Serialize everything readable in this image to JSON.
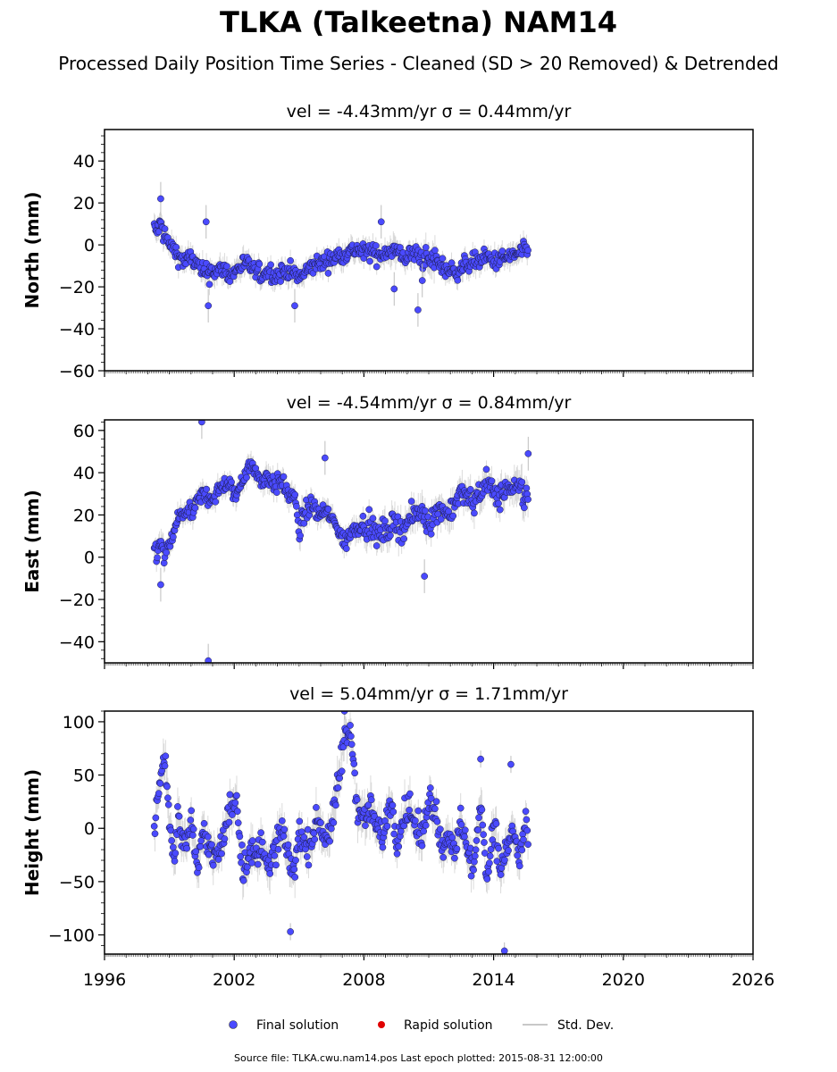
{
  "figure": {
    "title": "TLKA (Talkeetna) NAM14",
    "subtitle": "Processed Daily Position Time Series - Cleaned (SD > 20 Removed) & Detrended",
    "source": "Source file: TLKA.cwu.nam14.pos  Last epoch plotted: 2015-08-31 12:00:00"
  },
  "legend": {
    "items": [
      {
        "label": "Final solution",
        "kind": "dot",
        "color": "#4a4aff"
      },
      {
        "label": "Rapid solution",
        "kind": "dot",
        "color": "#e00000"
      },
      {
        "label": "Std. Dev.",
        "kind": "line",
        "color": "#c8c8c8"
      }
    ]
  },
  "chart_data": [
    {
      "type": "scatter",
      "title": "vel = -4.43mm/yr   σ = 0.44mm/yr",
      "ylabel": "North (mm)",
      "xlim": [
        1996,
        2026
      ],
      "ylim": [
        -60,
        55
      ],
      "yticks": [
        -60,
        -40,
        -20,
        0,
        20,
        40
      ],
      "yticklabels": [
        "−60",
        "−40",
        "−20",
        "0",
        "20",
        "40"
      ],
      "series_name": "Final solution",
      "x": [
        1998.3,
        1998.4,
        1998.6,
        1998.8,
        1999.0,
        1999.2,
        1999.4,
        1999.7,
        2000.0,
        2000.3,
        2000.6,
        2000.9,
        2001.2,
        2001.5,
        2001.8,
        2002.1,
        2002.4,
        2002.7,
        2003.0,
        2003.3,
        2003.6,
        2003.9,
        2004.2,
        2004.5,
        2004.8,
        2005.0,
        2005.3,
        2005.6,
        2005.9,
        2006.2,
        2006.5,
        2006.8,
        2007.1,
        2007.4,
        2007.7,
        2008.0,
        2008.3,
        2008.6,
        2008.9,
        2009.2,
        2009.5,
        2009.8,
        2010.1,
        2010.4,
        2010.7,
        2011.0,
        2011.3,
        2011.6,
        2011.9,
        2012.2,
        2012.5,
        2012.8,
        2013.1,
        2013.4,
        2013.7,
        2014.0,
        2014.3,
        2014.6,
        2014.9,
        2015.2,
        2015.5,
        2015.6
      ],
      "y": [
        8,
        6,
        10,
        4,
        0,
        -2,
        -5,
        -8,
        -6,
        -10,
        -14,
        -12,
        -13,
        -11,
        -15,
        -12,
        -9,
        -10,
        -13,
        -14,
        -12,
        -15,
        -13,
        -12,
        -14,
        -16,
        -13,
        -10,
        -9,
        -8,
        -7,
        -5,
        -4,
        -3,
        -2,
        -4,
        -3,
        -5,
        -4,
        -2,
        -3,
        -6,
        -5,
        -4,
        -6,
        -8,
        -7,
        -10,
        -12,
        -13,
        -11,
        -9,
        -8,
        -7,
        -6,
        -8,
        -7,
        -6,
        -5,
        -4,
        -3,
        -2
      ],
      "error": [
        3,
        3,
        4,
        3,
        3,
        3,
        3,
        3,
        3,
        3,
        4,
        3,
        3,
        3,
        3,
        3,
        3,
        3,
        3,
        3,
        3,
        3,
        3,
        3,
        3,
        3,
        3,
        3,
        3,
        3,
        3,
        3,
        3,
        3,
        3,
        3,
        3,
        3,
        3,
        4,
        3,
        3,
        3,
        3,
        4,
        4,
        3,
        3,
        3,
        3,
        3,
        3,
        3,
        3,
        3,
        3,
        3,
        3,
        3,
        3,
        3,
        3
      ],
      "outliers_x": [
        1998.6,
        2000.7,
        2000.8,
        2004.8,
        2008.8,
        2009.4,
        2010.5,
        2010.7
      ],
      "outliers_y": [
        22,
        11,
        -29,
        -29,
        11,
        -21,
        -31,
        -17
      ]
    },
    {
      "type": "scatter",
      "title": "vel = -4.54mm/yr   σ = 0.84mm/yr",
      "ylabel": "East (mm)",
      "xlim": [
        1996,
        2026
      ],
      "ylim": [
        -50,
        65
      ],
      "yticks": [
        -40,
        -20,
        0,
        20,
        40,
        60
      ],
      "yticklabels": [
        "−40",
        "−20",
        "0",
        "20",
        "40",
        "60"
      ],
      "series_name": "Final solution",
      "x": [
        1998.3,
        1998.4,
        1998.6,
        1998.8,
        1999.0,
        1999.2,
        1999.4,
        1999.7,
        2000.0,
        2000.3,
        2000.6,
        2000.9,
        2001.2,
        2001.5,
        2001.8,
        2002.1,
        2002.4,
        2002.7,
        2003.0,
        2003.3,
        2003.6,
        2003.9,
        2004.2,
        2004.5,
        2004.8,
        2005.0,
        2005.3,
        2005.6,
        2005.9,
        2006.2,
        2006.5,
        2006.8,
        2007.1,
        2007.4,
        2007.7,
        2008.0,
        2008.3,
        2008.6,
        2008.9,
        2009.2,
        2009.5,
        2009.8,
        2010.1,
        2010.4,
        2010.7,
        2011.0,
        2011.3,
        2011.6,
        2011.9,
        2012.2,
        2012.5,
        2012.8,
        2013.1,
        2013.4,
        2013.7,
        2014.0,
        2014.3,
        2014.6,
        2014.9,
        2015.2,
        2015.5,
        2015.6
      ],
      "y": [
        4,
        2,
        6,
        0,
        5,
        12,
        18,
        22,
        20,
        26,
        30,
        28,
        30,
        35,
        33,
        29,
        38,
        44,
        40,
        36,
        38,
        34,
        36,
        30,
        28,
        12,
        22,
        25,
        20,
        22,
        18,
        14,
        6,
        12,
        15,
        16,
        14,
        10,
        12,
        14,
        16,
        13,
        18,
        20,
        22,
        16,
        20,
        24,
        20,
        26,
        30,
        28,
        26,
        32,
        36,
        30,
        28,
        34,
        30,
        32,
        28,
        30
      ],
      "error": [
        3,
        3,
        4,
        3,
        3,
        3,
        3,
        3,
        3,
        3,
        3,
        3,
        3,
        3,
        3,
        3,
        3,
        3,
        3,
        3,
        3,
        3,
        3,
        3,
        3,
        4,
        3,
        3,
        3,
        3,
        3,
        3,
        3,
        3,
        3,
        4,
        4,
        4,
        4,
        4,
        4,
        4,
        4,
        4,
        4,
        4,
        4,
        4,
        4,
        4,
        4,
        4,
        4,
        4,
        4,
        4,
        4,
        4,
        5,
        5,
        5,
        5
      ],
      "outliers_x": [
        1998.6,
        2000.5,
        2000.8,
        2006.2,
        2010.8,
        2015.6
      ],
      "outliers_y": [
        -13,
        64,
        -49,
        47,
        -9,
        49
      ]
    },
    {
      "type": "scatter",
      "title": "vel = 5.04mm/yr   σ = 1.71mm/yr",
      "ylabel": "Height (mm)",
      "xlim": [
        1996,
        2026
      ],
      "ylim": [
        -118,
        110
      ],
      "yticks": [
        -100,
        -50,
        0,
        50,
        100
      ],
      "yticklabels": [
        "−100",
        "−50",
        "0",
        "50",
        "100"
      ],
      "series_name": "Final solution",
      "x": [
        1998.3,
        1998.4,
        1998.6,
        1998.8,
        1999.0,
        1999.2,
        1999.4,
        1999.7,
        2000.0,
        2000.3,
        2000.6,
        2000.9,
        2001.2,
        2001.5,
        2001.8,
        2002.1,
        2002.4,
        2002.7,
        2003.0,
        2003.3,
        2003.6,
        2003.9,
        2004.2,
        2004.5,
        2004.8,
        2005.0,
        2005.3,
        2005.6,
        2005.9,
        2006.2,
        2006.5,
        2006.8,
        2007.1,
        2007.4,
        2007.7,
        2008.0,
        2008.3,
        2008.6,
        2008.9,
        2009.2,
        2009.5,
        2009.8,
        2010.1,
        2010.4,
        2010.7,
        2011.0,
        2011.3,
        2011.6,
        2011.9,
        2012.2,
        2012.5,
        2012.8,
        2013.1,
        2013.4,
        2013.7,
        2014.0,
        2014.3,
        2014.6,
        2014.9,
        2015.2,
        2015.5,
        2015.6
      ],
      "y": [
        0,
        20,
        45,
        70,
        10,
        -30,
        15,
        -20,
        10,
        -40,
        0,
        -20,
        -30,
        -10,
        20,
        30,
        -40,
        -20,
        -30,
        -10,
        -40,
        -20,
        0,
        -30,
        -40,
        0,
        -20,
        -10,
        10,
        -10,
        0,
        40,
        85,
        90,
        20,
        10,
        20,
        0,
        -10,
        30,
        -10,
        10,
        20,
        0,
        -10,
        30,
        20,
        -20,
        0,
        -30,
        10,
        -20,
        -40,
        30,
        -50,
        10,
        -40,
        -20,
        0,
        -30,
        10,
        -20
      ],
      "error": [
        10,
        10,
        10,
        10,
        10,
        10,
        10,
        10,
        10,
        10,
        10,
        10,
        10,
        10,
        10,
        10,
        10,
        10,
        10,
        10,
        10,
        10,
        10,
        10,
        10,
        10,
        10,
        10,
        10,
        10,
        10,
        10,
        10,
        10,
        10,
        10,
        10,
        10,
        10,
        10,
        10,
        10,
        10,
        10,
        10,
        10,
        10,
        10,
        10,
        10,
        10,
        10,
        10,
        10,
        10,
        10,
        10,
        10,
        10,
        10,
        10,
        10
      ],
      "outliers_x": [
        2004.6,
        2014.5,
        2013.4,
        2014.8,
        2007.1
      ],
      "outliers_y": [
        -97,
        -115,
        65,
        60,
        110
      ]
    }
  ],
  "xaxis": {
    "ticks": [
      1996,
      2002,
      2008,
      2014,
      2020,
      2026
    ],
    "ticklabels": [
      "1996",
      "2002",
      "2008",
      "2014",
      "2020",
      "2026"
    ]
  }
}
